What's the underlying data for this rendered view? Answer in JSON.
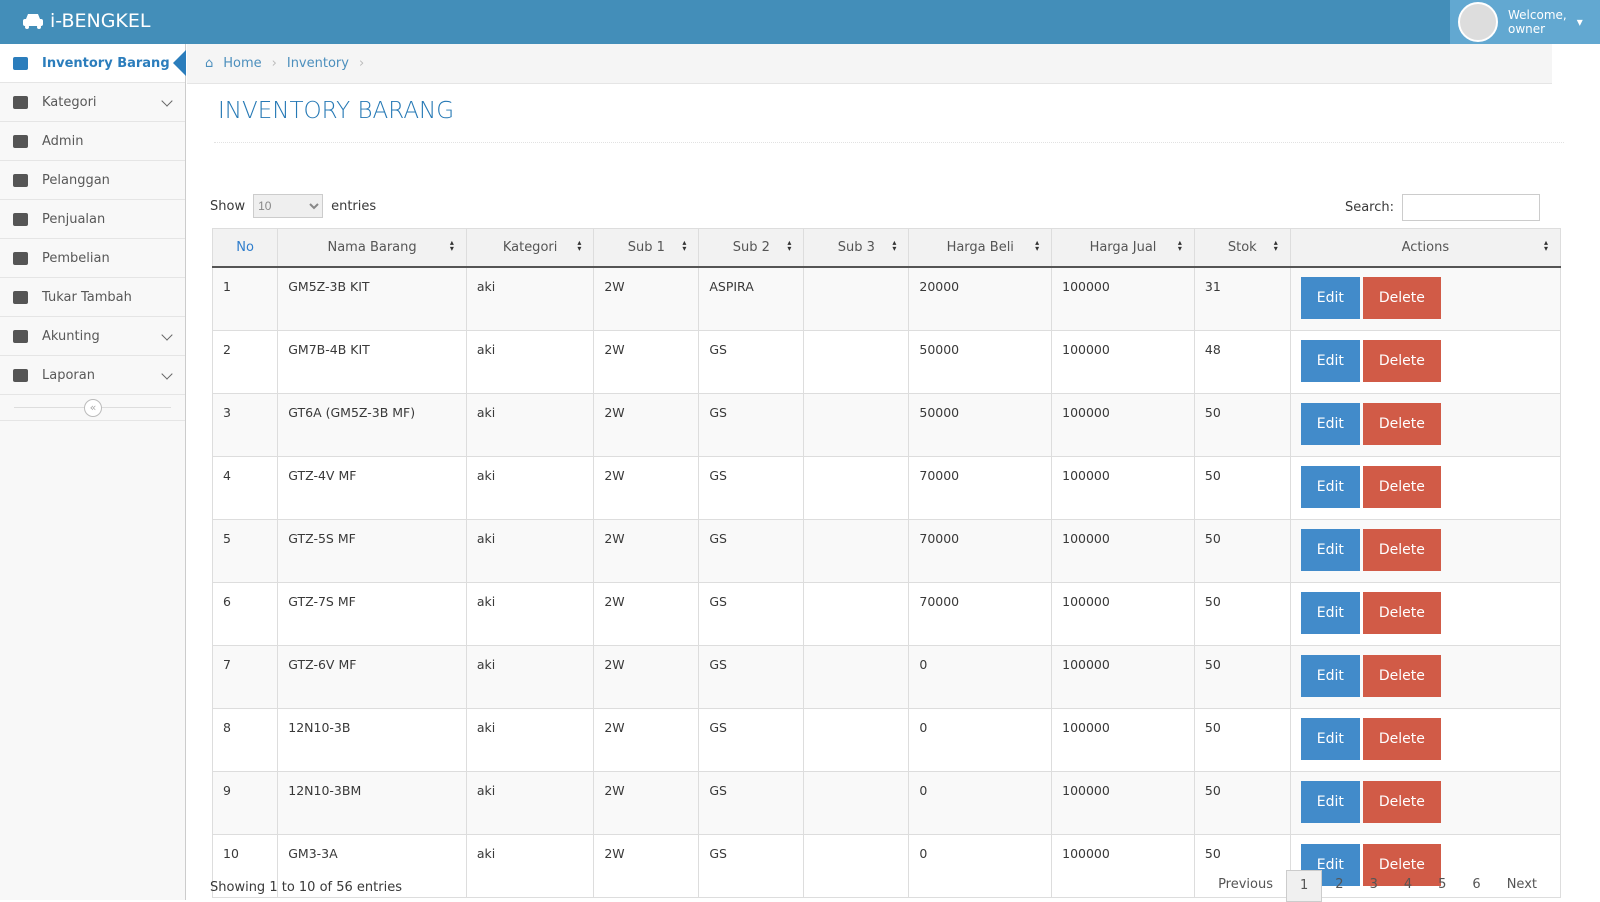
{
  "brand": "i-BENGKEL",
  "user": {
    "welcome": "Welcome,",
    "name": "owner"
  },
  "sidebar": [
    {
      "label": "Inventory Barang",
      "active": true,
      "submenu": false
    },
    {
      "label": "Kategori",
      "active": false,
      "submenu": true
    },
    {
      "label": "Admin",
      "active": false,
      "submenu": false
    },
    {
      "label": "Pelanggan",
      "active": false,
      "submenu": false
    },
    {
      "label": "Penjualan",
      "active": false,
      "submenu": false
    },
    {
      "label": "Pembelian",
      "active": false,
      "submenu": false
    },
    {
      "label": "Tukar Tambah",
      "active": false,
      "submenu": false
    },
    {
      "label": "Akunting",
      "active": false,
      "submenu": true
    },
    {
      "label": "Laporan",
      "active": false,
      "submenu": true
    }
  ],
  "breadcrumb": [
    "Home",
    "Inventory"
  ],
  "page_title": "INVENTORY BARANG",
  "length": {
    "show": "Show",
    "value": "10",
    "entries": "entries"
  },
  "search": "Search:",
  "table": {
    "columns": [
      "No",
      "Nama Barang",
      "Kategori",
      "Sub 1",
      "Sub 2",
      "Sub 3",
      "Harga Beli",
      "Harga Jual",
      "Stok",
      "Actions"
    ],
    "rows": [
      [
        1,
        "GM5Z-3B KIT",
        "aki",
        "2W",
        "ASPIRA",
        null,
        20000,
        100000,
        31
      ],
      [
        2,
        "GM7B-4B KIT",
        "aki",
        "2W",
        "GS",
        null,
        50000,
        100000,
        48
      ],
      [
        3,
        "GT6A (GM5Z-3B MF)",
        "aki",
        "2W",
        "GS",
        null,
        50000,
        100000,
        50
      ],
      [
        4,
        "GTZ-4V MF",
        "aki",
        "2W",
        "GS",
        null,
        70000,
        100000,
        50
      ],
      [
        5,
        "GTZ-5S MF",
        "aki",
        "2W",
        "GS",
        null,
        70000,
        100000,
        50
      ],
      [
        6,
        "GTZ-7S MF",
        "aki",
        "2W",
        "GS",
        null,
        70000,
        100000,
        50
      ],
      [
        7,
        "GTZ-6V MF",
        "aki",
        "2W",
        "GS",
        null,
        0,
        100000,
        50
      ],
      [
        8,
        "12N10-3B",
        "aki",
        "2W",
        "GS",
        null,
        0,
        100000,
        50
      ],
      [
        9,
        "12N10-3BM",
        "aki",
        "2W",
        "GS",
        null,
        0,
        100000,
        50
      ],
      [
        10,
        "GM3-3A",
        "aki",
        "2W",
        "GS",
        null,
        0,
        100000,
        50
      ]
    ]
  },
  "actions": {
    "edit": "Edit",
    "delete": "Delete"
  },
  "info": "Showing 1 to 10 of 56 entries",
  "pagination": {
    "previous": "Previous",
    "pages": [
      1,
      2,
      3,
      4,
      5,
      6
    ],
    "current": 1,
    "next": "Next"
  }
}
